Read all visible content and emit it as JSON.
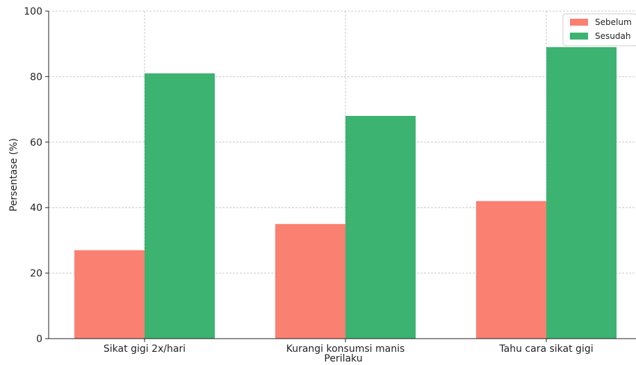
{
  "chart_data": {
    "type": "bar",
    "title": "",
    "xlabel": "Perilaku",
    "ylabel": "Persentase (%)",
    "categories": [
      "Sikat gigi 2x/hari",
      "Kurangi konsumsi manis",
      "Tahu cara sikat gigi"
    ],
    "series": [
      {
        "name": "Sebelum",
        "values": [
          27,
          35,
          42
        ],
        "color": "#fa8072"
      },
      {
        "name": "Sesudah",
        "values": [
          81,
          68,
          89
        ],
        "color": "#3cb371"
      }
    ],
    "ylim": [
      0,
      100
    ],
    "yticks": [
      0,
      20,
      40,
      60,
      80,
      100
    ],
    "grid": true,
    "legend_position": "top-right"
  }
}
